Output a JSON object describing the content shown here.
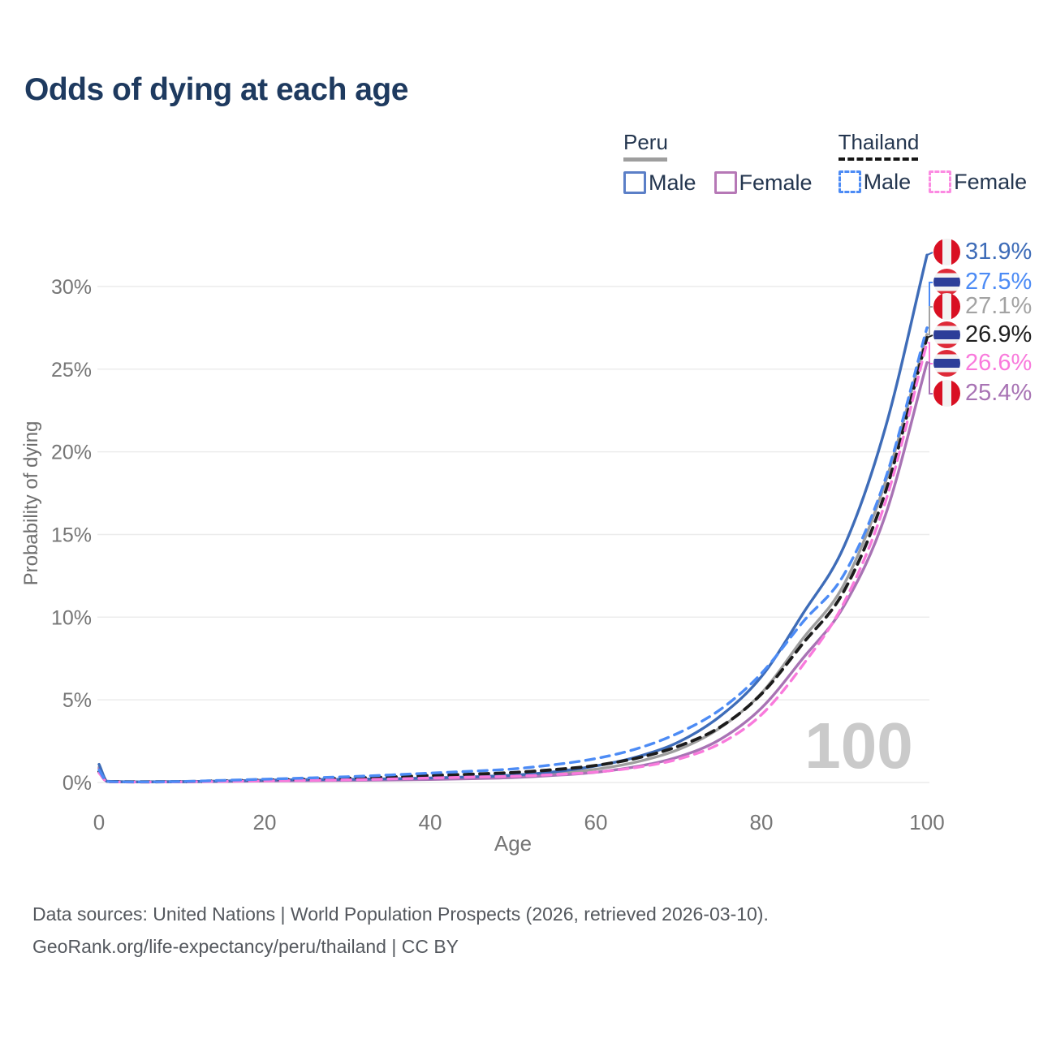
{
  "title": "Odds of dying at each age",
  "legend": {
    "peru": {
      "title": "Peru",
      "male": "Male",
      "female": "Female"
    },
    "thailand": {
      "title": "Thailand",
      "male": "Male",
      "female": "Female"
    }
  },
  "watermark": "100",
  "footer": {
    "line1": "Data sources: United Nations | World Population Prospects (2026, retrieved 2026-03-10).",
    "line2": "GeoRank.org/life-expectancy/peru/thailand | CC BY"
  },
  "colors": {
    "title_text": "#1e3a5f",
    "legend_text": "#24364f",
    "gridline": "#ececec",
    "tick_text": "#767676",
    "axis_title_text": "#6e6e6e",
    "watermark_text": "#cacaca",
    "footer_text": "#54585e",
    "peru_underline": "#9e9e9e",
    "thailand_underline": "#161616",
    "peru_flag_red": "#d91023",
    "thailand_flag_red": "#de2a38",
    "thailand_flag_blue": "#2d3e99",
    "flag_white": "#f2f2f2"
  },
  "chart_data": {
    "type": "line",
    "title": "Odds of dying at each age",
    "xlabel": "Age",
    "ylabel": "Probability of dying",
    "xlim": [
      0,
      100
    ],
    "ylim": [
      0,
      32
    ],
    "x_ticks": [
      0,
      20,
      40,
      60,
      80,
      100
    ],
    "y_ticks": [
      0,
      5,
      10,
      15,
      20,
      25,
      30
    ],
    "y_tick_suffix": "%",
    "grid": "horizontal",
    "legend_position": "top-right",
    "hover_age_watermark": "100",
    "ages": [
      0,
      1,
      5,
      10,
      15,
      20,
      25,
      30,
      35,
      40,
      45,
      50,
      55,
      60,
      65,
      70,
      75,
      80,
      85,
      90,
      95,
      100
    ],
    "series": [
      {
        "name": "Peru Total",
        "country": "Peru",
        "sex": "Total",
        "style": "solid",
        "color": "#9e9e9e",
        "values": [
          0.93,
          0.07,
          0.04,
          0.05,
          0.08,
          0.11,
          0.13,
          0.15,
          0.18,
          0.22,
          0.28,
          0.36,
          0.53,
          0.8,
          1.25,
          2.0,
          3.3,
          5.4,
          8.7,
          12.0,
          18.2,
          27.1
        ]
      },
      {
        "name": "Peru Female",
        "country": "Peru",
        "sex": "Female",
        "style": "solid",
        "color": "#a873b4",
        "values": [
          0.85,
          0.06,
          0.04,
          0.04,
          0.06,
          0.09,
          0.11,
          0.13,
          0.15,
          0.18,
          0.23,
          0.3,
          0.43,
          0.62,
          0.97,
          1.55,
          2.6,
          4.5,
          7.5,
          10.7,
          16.2,
          25.4
        ]
      },
      {
        "name": "Peru Male",
        "country": "Peru",
        "sex": "Male",
        "style": "solid",
        "color": "#3e6cb8",
        "values": [
          1.1,
          0.07,
          0.04,
          0.05,
          0.09,
          0.14,
          0.17,
          0.19,
          0.22,
          0.27,
          0.34,
          0.44,
          0.65,
          1.0,
          1.55,
          2.45,
          4.0,
          6.4,
          10.2,
          14.3,
          21.5,
          31.9
        ]
      },
      {
        "name": "Thailand Total",
        "country": "Thailand",
        "sex": "Total",
        "style": "dashed",
        "color": "#1c1c1c",
        "values": [
          0.65,
          0.06,
          0.04,
          0.05,
          0.1,
          0.15,
          0.2,
          0.26,
          0.33,
          0.42,
          0.5,
          0.6,
          0.78,
          1.03,
          1.48,
          2.2,
          3.35,
          5.35,
          8.4,
          11.6,
          17.6,
          26.9
        ]
      },
      {
        "name": "Thailand Female",
        "country": "Thailand",
        "sex": "Female",
        "style": "dashed",
        "color": "#f97adc",
        "values": [
          0.58,
          0.05,
          0.03,
          0.04,
          0.07,
          0.1,
          0.13,
          0.16,
          0.21,
          0.27,
          0.33,
          0.38,
          0.48,
          0.63,
          0.92,
          1.42,
          2.35,
          4.1,
          7.1,
          10.9,
          17.0,
          26.6
        ]
      },
      {
        "name": "Thailand Male",
        "country": "Thailand",
        "sex": "Male",
        "style": "dashed",
        "color": "#4c8bf5",
        "values": [
          0.75,
          0.06,
          0.04,
          0.06,
          0.13,
          0.2,
          0.27,
          0.35,
          0.45,
          0.57,
          0.68,
          0.82,
          1.08,
          1.45,
          2.05,
          3.0,
          4.4,
          6.6,
          9.7,
          12.6,
          18.4,
          27.5
        ]
      }
    ],
    "end_labels": [
      {
        "text": "31.9%",
        "value": 31.9,
        "color": "#3e6cb8",
        "flag": "peru",
        "series": "Peru Male"
      },
      {
        "text": "27.5%",
        "value": 27.5,
        "color": "#4c8bf5",
        "flag": "thailand",
        "series": "Thailand Male"
      },
      {
        "text": "27.1%",
        "value": 27.1,
        "color": "#a3a3a3",
        "flag": "peru",
        "series": "Peru Total"
      },
      {
        "text": "26.9%",
        "value": 26.9,
        "color": "#1f1f1f",
        "flag": "thailand",
        "series": "Thailand Total"
      },
      {
        "text": "26.6%",
        "value": 26.6,
        "color": "#f97adc",
        "flag": "thailand",
        "series": "Thailand Female"
      },
      {
        "text": "25.4%",
        "value": 25.4,
        "color": "#a873b4",
        "flag": "peru",
        "series": "Peru Female"
      }
    ]
  }
}
